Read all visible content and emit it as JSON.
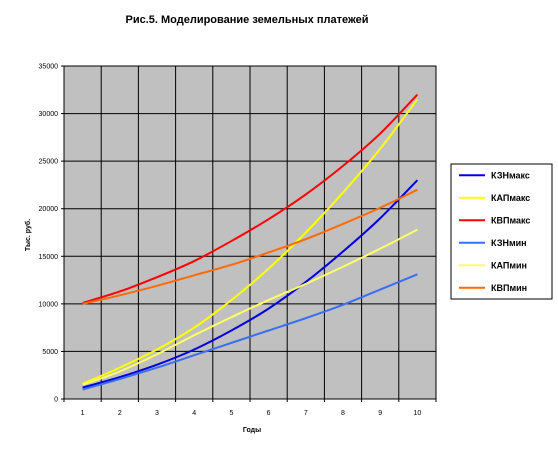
{
  "chart_data": {
    "type": "line",
    "title": "Рис.5. Моделирование земельных платежей",
    "xlabel": "Годы",
    "ylabel": "Тыс. руб.",
    "x": [
      1,
      2,
      3,
      4,
      5,
      6,
      7,
      8,
      9,
      10
    ],
    "ylim": [
      0,
      35000
    ],
    "y_ticks": [
      0,
      5000,
      10000,
      15000,
      20000,
      25000,
      30000,
      35000
    ],
    "grid": true,
    "legend_position": "right",
    "plot_background": "#c0c0c0",
    "series": [
      {
        "name": "КЗНмакс",
        "color": "#0000dd",
        "values": [
          1200,
          2300,
          3600,
          5200,
          7200,
          9500,
          12300,
          15500,
          19000,
          23000
        ]
      },
      {
        "name": "КАПмакс",
        "color": "#ffff00",
        "values": [
          1600,
          3300,
          5200,
          7500,
          10400,
          13700,
          17500,
          21700,
          26300,
          31500
        ]
      },
      {
        "name": "КВПмакс",
        "color": "#ff0000",
        "values": [
          10100,
          11300,
          12800,
          14500,
          16600,
          18900,
          21500,
          24500,
          27900,
          32000
        ]
      },
      {
        "name": "КЗНмин",
        "color": "#3a6ef5",
        "values": [
          1000,
          2100,
          3300,
          4600,
          5900,
          7200,
          8500,
          9900,
          11500,
          13100
        ]
      },
      {
        "name": "КАПмин",
        "color": "#ffff66",
        "values": [
          1500,
          2900,
          4700,
          6700,
          8600,
          10400,
          12100,
          13900,
          15800,
          17800
        ]
      },
      {
        "name": "КВПмин",
        "color": "#ff6a00",
        "values": [
          10000,
          10900,
          11900,
          13000,
          14100,
          15400,
          16800,
          18400,
          20100,
          22000
        ]
      }
    ]
  }
}
